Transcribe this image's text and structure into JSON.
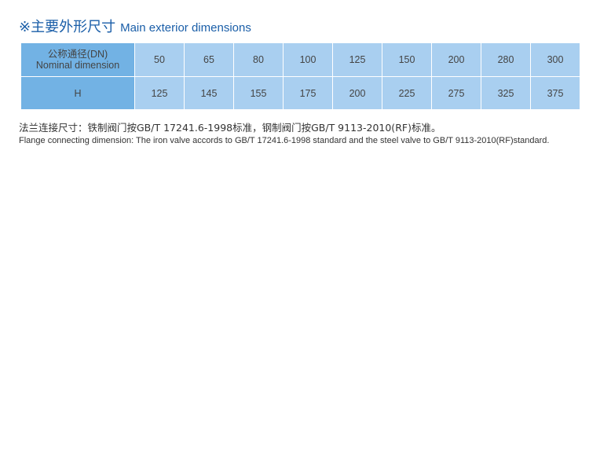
{
  "title": {
    "cn": "※主要外形尺寸",
    "en": "Main exterior dimensions"
  },
  "table": {
    "header_cn": "公称通径(DN)",
    "header_en": "Nominal dimension",
    "row2_label": "H",
    "dn": [
      "50",
      "65",
      "80",
      "100",
      "125",
      "150",
      "200",
      "280",
      "300"
    ],
    "h": [
      "125",
      "145",
      "155",
      "175",
      "200",
      "225",
      "275",
      "325",
      "375"
    ]
  },
  "note": {
    "cn": "法兰连接尺寸：铁制阀门按GB/T 17241.6-1998标准，钢制阀门按GB/T 9113-2010(RF)标准。",
    "en": "Flange connecting dimension: The iron valve accords to GB/T 17241.6-1998  standard and the steel valve to GB/T 9113-2010(RF)standard."
  }
}
